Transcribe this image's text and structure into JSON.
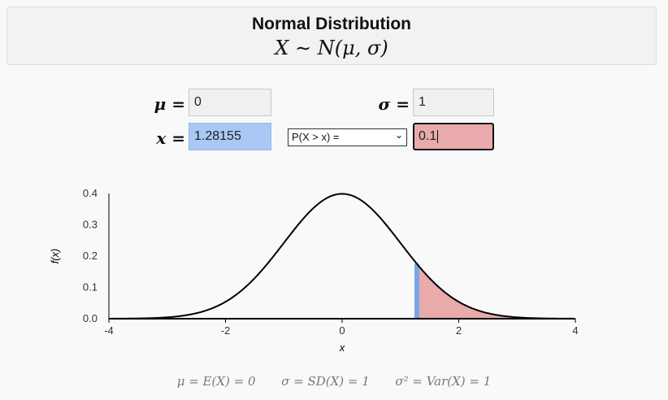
{
  "header": {
    "title": "Normal Distribution",
    "formula": "X ∼ N(μ, σ)"
  },
  "inputs": {
    "mu_label": "μ =",
    "mu_value": "0",
    "sigma_label": "σ =",
    "sigma_value": "1",
    "x_label": "x =",
    "x_value": "1.28155",
    "prob_select": "P(X > x) =",
    "prob_value": "0.1"
  },
  "footer": {
    "mean": "μ = E(X) = 0",
    "sd": "σ = SD(X) = 1",
    "var": "σ² = Var(X) = 1"
  },
  "colors": {
    "shade": "#e8aaaa",
    "x_marker": "#7aa6e8",
    "curve": "#000000"
  },
  "chart_data": {
    "type": "area",
    "function": "normal_pdf",
    "mu": 0,
    "sigma": 1,
    "x_range": [
      -4,
      4
    ],
    "ylim": [
      0,
      0.4
    ],
    "xticks": [
      "-4",
      "-2",
      "0",
      "2",
      "4"
    ],
    "yticks": [
      "0.0",
      "0.1",
      "0.2",
      "0.3",
      "0.4"
    ],
    "xlabel": "x",
    "ylabel": "f(x)",
    "shaded_from": 1.28155,
    "shaded_to": 4
  }
}
